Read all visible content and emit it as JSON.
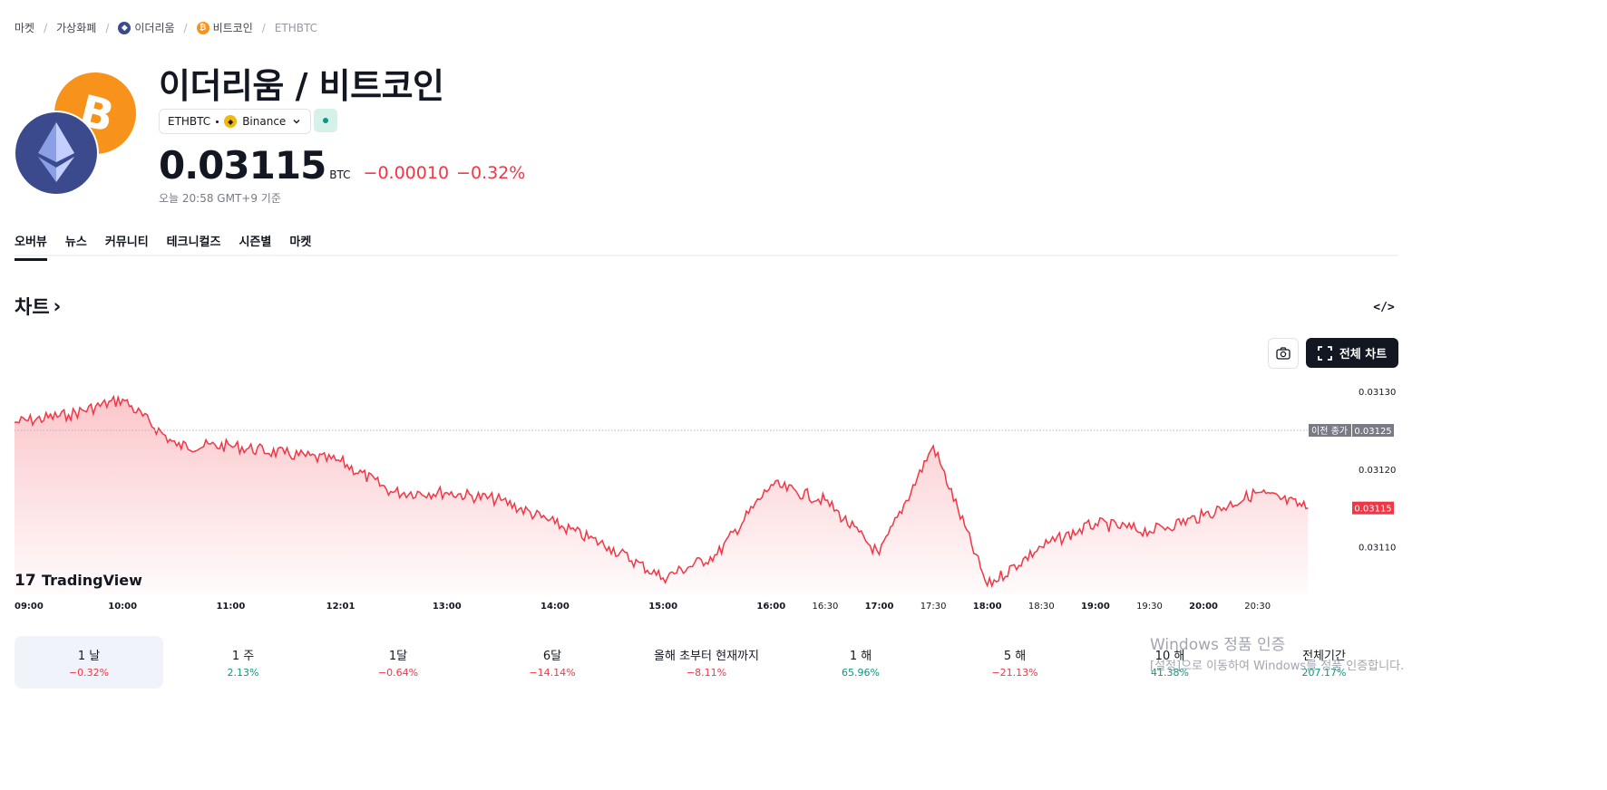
{
  "breadcrumb": {
    "items": [
      {
        "label": "마켓"
      },
      {
        "label": "가상화폐"
      },
      {
        "label": "이더리움",
        "icon": "ethereum-icon"
      },
      {
        "label": "비트코인",
        "icon": "bitcoin-icon"
      },
      {
        "label": "ETHBTC"
      }
    ]
  },
  "header": {
    "title": "이더리움 / 비트코인",
    "symbol": "ETHBTC",
    "exchange": "Binance",
    "exchange_icon": "binance-icon",
    "price": "0.03115",
    "currency": "BTC",
    "change": "−0.00010",
    "change_pct": "−0.32%",
    "as_of": "오늘 20:58 GMT+9 기준"
  },
  "tabs": [
    {
      "label": "오버뷰",
      "active": true
    },
    {
      "label": "뉴스"
    },
    {
      "label": "커뮤니티"
    },
    {
      "label": "테크니컬즈"
    },
    {
      "label": "시즌별"
    },
    {
      "label": "마켓"
    }
  ],
  "section": {
    "title": "차트",
    "chevron": "›",
    "embed_label": "</>"
  },
  "toolbar": {
    "fullchart_label": "전체 차트",
    "camera_icon": "camera-icon",
    "fullscreen_icon": "fullscreen-icon"
  },
  "chart_data": {
    "type": "area",
    "x": [
      "09:00",
      "09:30",
      "10:00",
      "10:30",
      "11:00",
      "11:30",
      "12:01",
      "12:30",
      "13:00",
      "13:30",
      "14:00",
      "14:30",
      "15:00",
      "15:30",
      "16:00",
      "16:30",
      "17:00",
      "17:30",
      "18:00",
      "18:30",
      "19:00",
      "19:30",
      "20:00",
      "20:30",
      "20:58"
    ],
    "y": [
      0.03126,
      0.03127,
      0.03129,
      0.03123,
      0.03123,
      0.03122,
      0.03121,
      0.03117,
      0.03117,
      0.03116,
      0.03113,
      0.0311,
      0.03106,
      0.03109,
      0.03118,
      0.03116,
      0.03109,
      0.03123,
      0.03105,
      0.0311,
      0.03113,
      0.03112,
      0.03114,
      0.03117,
      0.03115
    ],
    "x_ticks": [
      "09:00",
      "10:00",
      "11:00",
      "12:01",
      "13:00",
      "14:00",
      "15:00",
      "16:00",
      "16:30",
      "17:00",
      "17:30",
      "18:00",
      "18:30",
      "19:00",
      "19:30",
      "20:00",
      "20:30"
    ],
    "y_ticks": [
      "0.03130",
      "0.03120",
      "0.03110"
    ],
    "ylim": [
      0.03104,
      0.03132
    ],
    "prev_close": {
      "label": "이전 종가",
      "value": "0.03125"
    },
    "last_price": "0.03115",
    "line_color": "#f23645",
    "brand": "TradingView"
  },
  "periods": [
    {
      "label": "1 날",
      "value": "−0.32%",
      "dir": "neg",
      "selected": true
    },
    {
      "label": "1 주",
      "value": "2.13%",
      "dir": "pos"
    },
    {
      "label": "1달",
      "value": "−0.64%",
      "dir": "neg"
    },
    {
      "label": "6달",
      "value": "−14.14%",
      "dir": "neg"
    },
    {
      "label": "올해 초부터 현재까지",
      "value": "−8.11%",
      "dir": "neg"
    },
    {
      "label": "1 해",
      "value": "65.96%",
      "dir": "pos"
    },
    {
      "label": "5 해",
      "value": "−21.13%",
      "dir": "neg"
    },
    {
      "label": "10 해",
      "value": "41.38%",
      "dir": "pos"
    },
    {
      "label": "전체기간",
      "value": "207.17%",
      "dir": "pos"
    }
  ],
  "watermark": {
    "line1": "Windows 정품 인증",
    "line2": "[설정]으로 이동하여 Windows를 정품 인증합니다."
  }
}
